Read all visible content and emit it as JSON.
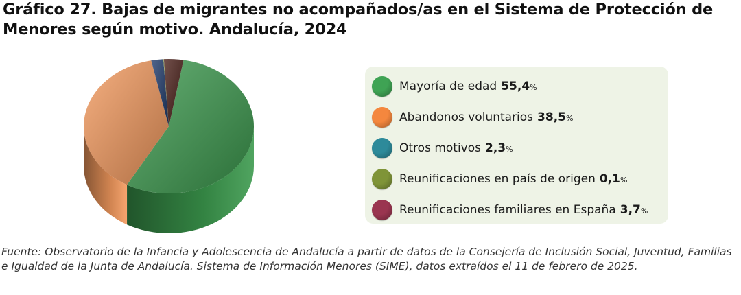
{
  "title": {
    "line1": "Gráfico 27. Bajas de migrantes no acompañados/as en el Sistema de Protección de",
    "line2": "Menores según motivo. Andalucía, 2024"
  },
  "chart_data": {
    "type": "pie",
    "style": "3d",
    "unit": "%",
    "legend_position": "right",
    "slices": [
      {
        "label": "Mayoría de edad",
        "value": 55.4,
        "display": "55,4",
        "color": "#3c9a4e"
      },
      {
        "label": "Abandonos voluntarios",
        "value": 38.5,
        "display": "38,5",
        "color": "#f49a5e"
      },
      {
        "label": "Otros motivos",
        "value": 2.3,
        "display": "2,3",
        "color": "#1f3a6b"
      },
      {
        "label": "Reunificaciones en país de origen",
        "value": 0.1,
        "display": "0,1",
        "color": "#8a9a3a"
      },
      {
        "label": "Reunificaciones familiares en España",
        "value": 3.7,
        "display": "3,7",
        "color": "#4a1e18"
      }
    ]
  },
  "legend_swatches": [
    "#3fa354",
    "#f4873e",
    "#2d8a9a",
    "#7f9438",
    "#9a3550"
  ],
  "source": "Fuente: Observatorio de la Infancia y Adolescencia de Andalucía a partir de datos de la Consejería de Inclusión Social, Juventud, Familias e Igualdad de la Junta de Andalucía. Sistema de Información Menores (SIME), datos extraídos el 11 de febrero de 2025."
}
